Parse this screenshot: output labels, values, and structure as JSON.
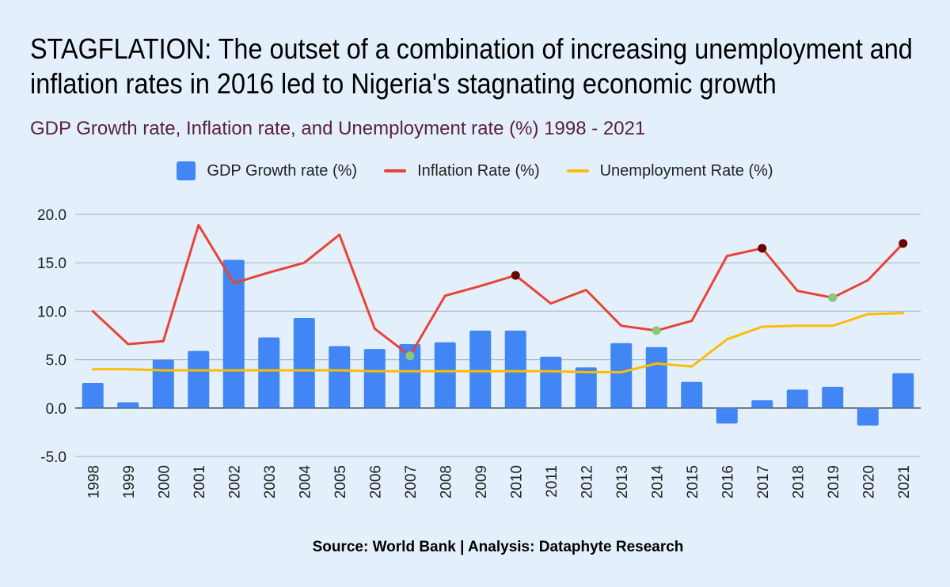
{
  "title_lines": [
    "STAGFLATION: The outset of a combination of increasing unemployment and",
    "inflation rates in 2016 led to Nigeria's stagnating economic growth"
  ],
  "subtitle": "GDP Growth rate, Inflation rate, and Unemployment rate (%) 1998 - 2021",
  "source": "Source: World Bank | Analysis: Dataphyte Research",
  "chart_data": {
    "type": "bar+line",
    "categories": [
      "1998",
      "1999",
      "2000",
      "2001",
      "2002",
      "2003",
      "2004",
      "2005",
      "2006",
      "2007",
      "2008",
      "2009",
      "2010",
      "2011",
      "2012",
      "2013",
      "2014",
      "2015",
      "2016",
      "2017",
      "2018",
      "2019",
      "2020",
      "2021"
    ],
    "ylim": [
      -5,
      20
    ],
    "yticks": [
      "20.0",
      "15.0",
      "10.0",
      "5.0",
      "0.0",
      "-5.0"
    ],
    "grid": true,
    "legend_position": "top",
    "series": [
      {
        "name": "GDP Growth rate (%)",
        "type": "bar",
        "color": "#4285f4",
        "values": [
          2.6,
          0.6,
          5.0,
          5.9,
          15.3,
          7.3,
          9.3,
          6.4,
          6.1,
          6.6,
          6.8,
          8.0,
          8.0,
          5.3,
          4.2,
          6.7,
          6.3,
          2.7,
          -1.6,
          0.8,
          1.9,
          2.2,
          -1.8,
          3.6
        ]
      },
      {
        "name": "Inflation Rate (%)",
        "type": "line",
        "color": "#ea4335",
        "values": [
          10.0,
          6.6,
          6.9,
          18.9,
          12.9,
          14.0,
          15.0,
          17.9,
          8.2,
          5.4,
          11.6,
          12.6,
          13.7,
          10.8,
          12.2,
          8.5,
          8.0,
          9.0,
          15.7,
          16.5,
          12.1,
          11.4,
          13.2,
          17.0
        ]
      },
      {
        "name": "Unemployment Rate (%)",
        "type": "line",
        "color": "#fbbc04",
        "values": [
          4.0,
          4.0,
          3.9,
          3.9,
          3.9,
          3.9,
          3.9,
          3.9,
          3.8,
          3.8,
          3.8,
          3.8,
          3.8,
          3.8,
          3.7,
          3.7,
          4.6,
          4.3,
          7.1,
          8.4,
          8.5,
          8.5,
          9.7,
          9.8
        ]
      }
    ],
    "highlight_points": [
      {
        "x": "2010",
        "y": 13.7,
        "color": "#6b0000"
      },
      {
        "x": "2017",
        "y": 16.5,
        "color": "#6b0000"
      },
      {
        "x": "2021",
        "y": 17.0,
        "color": "#6b0000"
      },
      {
        "x": "2007",
        "y": 5.4,
        "color": "#8bc77a"
      },
      {
        "x": "2014",
        "y": 8.0,
        "color": "#8bc77a"
      },
      {
        "x": "2019",
        "y": 11.4,
        "color": "#8bc77a"
      }
    ]
  }
}
